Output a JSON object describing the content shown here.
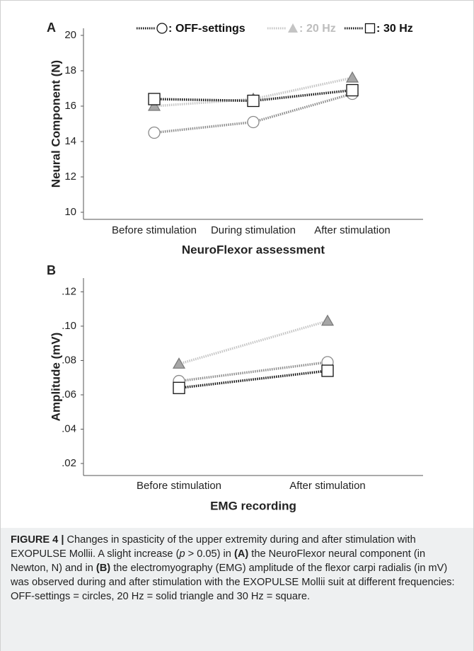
{
  "chart_data": [
    {
      "type": "line",
      "panel_label": "A",
      "xlabel": "NeuroFlexor assessment",
      "ylabel": "Neural Component (N)",
      "legend_separator": ":",
      "categories": [
        "Before stimulation",
        "During stimulation",
        "After stimulation"
      ],
      "ylim": [
        9.6,
        20.4
      ],
      "yticks": [
        10,
        12,
        14,
        16,
        18,
        20
      ],
      "series": [
        {
          "name": "OFF-settings",
          "color": "#8a8a8a",
          "marker": "circle",
          "marker_fill": "#ffffff",
          "values": [
            14.5,
            15.1,
            16.7
          ]
        },
        {
          "name": "20 Hz",
          "color": "#c4c4c4",
          "marker": "triangle",
          "marker_fill": "#a6a6a6",
          "values": [
            16.0,
            16.4,
            17.6
          ]
        },
        {
          "name": "30 Hz",
          "color": "#111111",
          "marker": "square",
          "marker_fill": "#ffffff",
          "values": [
            16.4,
            16.3,
            16.9
          ]
        }
      ]
    },
    {
      "type": "line",
      "panel_label": "B",
      "xlabel": "EMG recording",
      "ylabel": "Amplitude (mV)",
      "categories": [
        "Before stimulation",
        "After stimulation"
      ],
      "ylim": [
        0.013,
        0.128
      ],
      "yticks": [
        {
          "value": 0.02,
          "label": ".02"
        },
        {
          "value": 0.04,
          "label": ".04"
        },
        {
          "value": 0.06,
          "label": ".06"
        },
        {
          "value": 0.08,
          "label": ".08"
        },
        {
          "value": 0.1,
          "label": ".10"
        },
        {
          "value": 0.12,
          "label": ".12"
        }
      ],
      "series": [
        {
          "name": "OFF-settings",
          "color": "#8a8a8a",
          "marker": "circle",
          "marker_fill": "#ffffff",
          "values": [
            0.068,
            0.079
          ]
        },
        {
          "name": "20 Hz",
          "color": "#c4c4c4",
          "marker": "triangle",
          "marker_fill": "#a6a6a6",
          "values": [
            0.078,
            0.103
          ]
        },
        {
          "name": "30 Hz",
          "color": "#111111",
          "marker": "square",
          "marker_fill": "#ffffff",
          "values": [
            0.064,
            0.074
          ]
        }
      ]
    }
  ],
  "caption": {
    "label": "FIGURE 4 |",
    "runs": [
      {
        "text": " Changes in spasticity of the upper extremity during and after stimulation with EXOPULSE Mollii. A slight increase ("
      },
      {
        "text": "p",
        "style": "italic"
      },
      {
        "text": " > 0.05) in "
      },
      {
        "text": "(A)",
        "style": "bold"
      },
      {
        "text": " the NeuroFlexor neural component (in Newton, N) and in "
      },
      {
        "text": "(B)",
        "style": "bold"
      },
      {
        "text": " the electromyography (EMG) amplitude of the flexor carpi radialis (in mV) was observed during and after stimulation with the EXOPULSE Mollii suit at different frequencies: OFF-settings = circles, 20 Hz = solid triangle and 30 Hz = square."
      }
    ]
  }
}
